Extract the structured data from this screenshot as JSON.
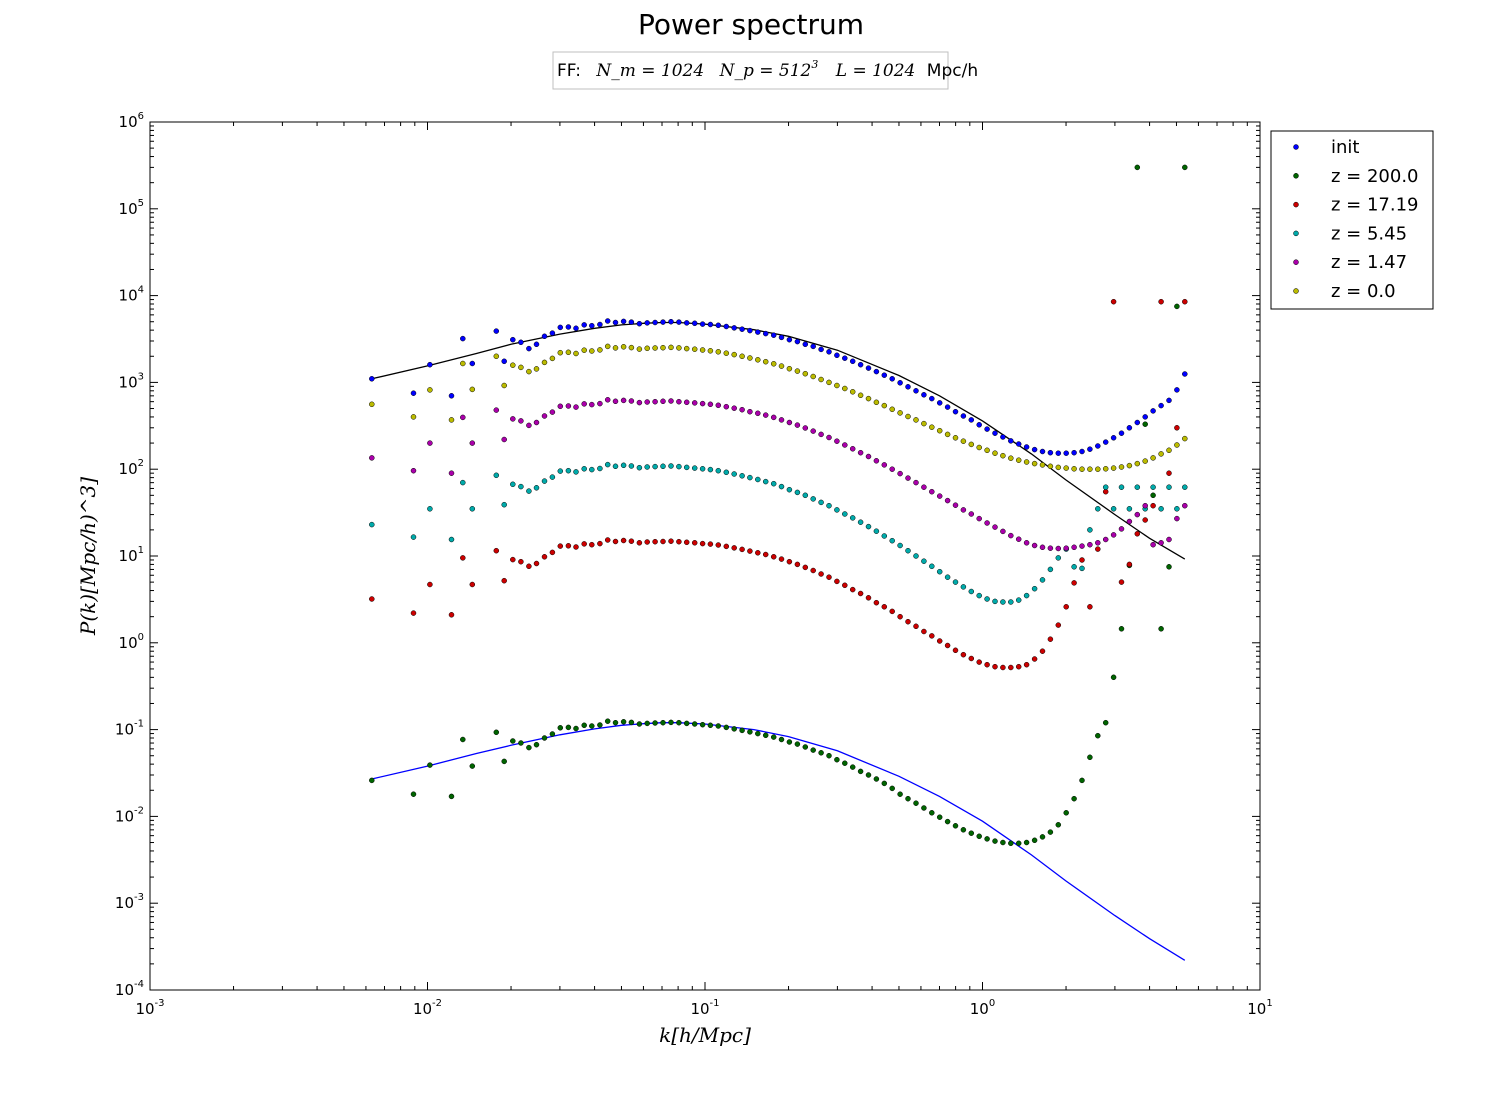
{
  "chart_data": {
    "type": "scatter",
    "title": "Power spectrum",
    "annotation": {
      "prefix": "FF:",
      "nm": "N_m = 1024",
      "np_base": "N_p = 512",
      "np_exp": "3",
      "L": "L = 1024",
      "L_unit": "Mpc/h"
    },
    "xlabel": "k[h/Mpc]",
    "ylabel": "P(k)[Mpc/h)^3]",
    "x_scale": "log",
    "y_scale": "log",
    "xlim": [
      0.001,
      10
    ],
    "ylim": [
      0.0001,
      1000000
    ],
    "x_ticks": [
      {
        "base": "10",
        "exp": "-3"
      },
      {
        "base": "10",
        "exp": "-2"
      },
      {
        "base": "10",
        "exp": "-1"
      },
      {
        "base": "10",
        "exp": "0"
      },
      {
        "base": "10",
        "exp": "1"
      }
    ],
    "y_ticks": [
      {
        "base": "10",
        "exp": "-4"
      },
      {
        "base": "10",
        "exp": "-3"
      },
      {
        "base": "10",
        "exp": "-2"
      },
      {
        "base": "10",
        "exp": "-1"
      },
      {
        "base": "10",
        "exp": "0"
      },
      {
        "base": "10",
        "exp": "1"
      },
      {
        "base": "10",
        "exp": "2"
      },
      {
        "base": "10",
        "exp": "3"
      },
      {
        "base": "10",
        "exp": "4"
      },
      {
        "base": "10",
        "exp": "5"
      },
      {
        "base": "10",
        "exp": "6"
      }
    ],
    "grid": false,
    "legend_position": "outside-top-right",
    "k_values": [
      0.0063,
      0.0089,
      0.0102,
      0.0122,
      0.0134,
      0.0145,
      0.0177,
      0.0189,
      0.0203,
      0.0217,
      0.0232,
      0.0247,
      0.0264,
      0.0282,
      0.0301,
      0.0322,
      0.0343,
      0.0367,
      0.0391,
      0.0418,
      0.0446,
      0.0476,
      0.0509,
      0.0543,
      0.058,
      0.0619,
      0.0661,
      0.0706,
      0.0754,
      0.0805,
      0.0859,
      0.0918,
      0.098,
      0.1046,
      0.1117,
      0.1193,
      0.1274,
      0.136,
      0.1452,
      0.155,
      0.1655,
      0.1768,
      0.1887,
      0.2015,
      0.2152,
      0.2298,
      0.2454,
      0.262,
      0.2798,
      0.2987,
      0.319,
      0.3406,
      0.3637,
      0.3883,
      0.4147,
      0.4428,
      0.4728,
      0.5049,
      0.5391,
      0.5757,
      0.6147,
      0.6564,
      0.7009,
      0.7484,
      0.7992,
      0.8534,
      0.9112,
      0.973,
      1.039,
      1.1094,
      1.1847,
      1.265,
      1.3508,
      1.4424,
      1.5402,
      1.6446,
      1.7561,
      1.8752,
      2.0023,
      2.1381,
      2.2831,
      2.4379,
      2.6032,
      2.7797,
      2.9682,
      3.1694,
      3.3843,
      3.6138,
      3.8588,
      4.1205,
      4.3999,
      4.6982,
      5.0168,
      5.357
    ],
    "series": [
      {
        "name": "init",
        "color": "#0000ff",
        "values": [
          1100,
          750,
          1600,
          700,
          3200,
          1650,
          3900,
          1750,
          3100,
          2900,
          2450,
          2750,
          3400,
          3700,
          4300,
          4350,
          4200,
          4600,
          4500,
          4650,
          5100,
          4900,
          5050,
          4950,
          4750,
          4850,
          4900,
          4950,
          5000,
          4950,
          4850,
          4800,
          4700,
          4650,
          4550,
          4400,
          4250,
          4100,
          3950,
          3800,
          3650,
          3500,
          3300,
          3100,
          2950,
          2750,
          2600,
          2400,
          2250,
          2050,
          1900,
          1750,
          1600,
          1460,
          1330,
          1210,
          1100,
          990,
          890,
          800,
          720,
          650,
          580,
          520,
          460,
          410,
          370,
          325,
          290,
          260,
          235,
          212,
          195,
          180,
          168,
          160,
          155,
          153,
          153,
          155,
          160,
          170,
          185,
          205,
          230,
          260,
          300,
          345,
          400,
          470,
          540,
          620,
          820,
          1250
        ]
      },
      {
        "name": "z = 200.0",
        "color": "#006400",
        "values": [
          0.026,
          0.018,
          0.039,
          0.017,
          0.077,
          0.038,
          0.093,
          0.043,
          0.074,
          0.07,
          0.062,
          0.067,
          0.08,
          0.089,
          0.105,
          0.106,
          0.103,
          0.112,
          0.11,
          0.113,
          0.125,
          0.12,
          0.123,
          0.121,
          0.116,
          0.118,
          0.119,
          0.12,
          0.121,
          0.12,
          0.118,
          0.116,
          0.114,
          0.112,
          0.11,
          0.106,
          0.102,
          0.098,
          0.094,
          0.09,
          0.086,
          0.082,
          0.077,
          0.072,
          0.068,
          0.063,
          0.058,
          0.054,
          0.05,
          0.045,
          0.041,
          0.037,
          0.033,
          0.03,
          0.027,
          0.024,
          0.021,
          0.018,
          0.016,
          0.0142,
          0.0125,
          0.011,
          0.0098,
          0.0087,
          0.0078,
          0.007,
          0.0064,
          0.0059,
          0.0055,
          0.0052,
          0.005,
          0.0049,
          0.0049,
          0.005,
          0.0053,
          0.0058,
          0.0066,
          0.008,
          0.011,
          0.016,
          0.026,
          0.048,
          0.085,
          0.12,
          0.4,
          1.45,
          7.8,
          300000,
          330,
          50,
          1.45,
          7.5,
          7500,
          300000
        ]
      },
      {
        "name": "z = 17.19",
        "color": "#cc0000",
        "values": [
          3.2,
          2.2,
          4.7,
          2.1,
          9.5,
          4.7,
          11.5,
          5.2,
          9.1,
          8.6,
          7.6,
          8.2,
          9.8,
          11,
          13,
          13.1,
          12.7,
          13.8,
          13.5,
          13.9,
          15.3,
          14.7,
          15.1,
          14.8,
          14.2,
          14.5,
          14.6,
          14.7,
          14.8,
          14.6,
          14.4,
          14.2,
          13.9,
          13.7,
          13.4,
          12.9,
          12.4,
          11.9,
          11.4,
          10.9,
          10.4,
          9.8,
          9.2,
          8.6,
          8.0,
          7.4,
          6.8,
          6.2,
          5.7,
          5.1,
          4.6,
          4.1,
          3.7,
          3.3,
          2.9,
          2.6,
          2.3,
          2.0,
          1.75,
          1.55,
          1.35,
          1.2,
          1.05,
          0.93,
          0.82,
          0.73,
          0.66,
          0.6,
          0.56,
          0.53,
          0.52,
          0.52,
          0.53,
          0.56,
          0.65,
          0.8,
          1.1,
          1.6,
          2.6,
          4.9,
          9.0,
          2.6,
          12,
          55,
          8500,
          5,
          8,
          18,
          26,
          38,
          8500,
          90,
          300,
          8500
        ]
      },
      {
        "name": "z = 5.45",
        "color": "#00aaaa",
        "values": [
          23,
          16.5,
          35,
          15.5,
          70,
          35,
          85,
          39,
          67,
          63,
          56,
          61,
          73,
          81,
          95,
          96,
          93,
          101,
          99,
          102,
          113,
          108,
          111,
          109,
          104,
          106,
          107,
          108,
          109,
          107,
          105,
          103,
          101,
          99,
          96,
          92,
          88,
          84,
          80,
          76,
          72,
          68,
          63,
          58,
          54,
          50,
          45.5,
          41.5,
          38,
          34,
          30.5,
          27.5,
          24.5,
          21.8,
          19.3,
          17,
          15,
          13.2,
          11.5,
          10,
          8.7,
          7.6,
          6.6,
          5.7,
          5.0,
          4.4,
          3.9,
          3.5,
          3.2,
          3.0,
          2.95,
          2.95,
          3.1,
          3.5,
          4.2,
          5.3,
          7.0,
          9.5,
          12,
          7.5,
          7.2,
          20,
          35,
          62,
          35,
          62,
          35,
          62,
          35,
          62,
          35,
          62,
          35,
          62
        ]
      },
      {
        "name": "z = 1.47",
        "color": "#aa00aa",
        "values": [
          135,
          96,
          200,
          90,
          395,
          200,
          480,
          220,
          380,
          360,
          320,
          345,
          410,
          455,
          530,
          535,
          520,
          565,
          555,
          570,
          630,
          605,
          620,
          610,
          585,
          595,
          600,
          605,
          610,
          600,
          590,
          580,
          570,
          560,
          545,
          525,
          505,
          485,
          460,
          440,
          420,
          395,
          370,
          345,
          322,
          298,
          275,
          252,
          232,
          210,
          190,
          172,
          155,
          140,
          125,
          112,
          100,
          89,
          79,
          70,
          62,
          55,
          49,
          43.5,
          38.5,
          34,
          30.5,
          27,
          24,
          21.5,
          19.2,
          17.2,
          15.6,
          14.2,
          13.2,
          12.6,
          12.3,
          12.2,
          12.3,
          12.6,
          13.0,
          13.5,
          14.2,
          15.5,
          17.5,
          20.5,
          25,
          30,
          38,
          13.5,
          14.2,
          15.5,
          27,
          38
        ]
      },
      {
        "name": "z = 0.0",
        "color": "#bbbb00",
        "values": [
          560,
          400,
          820,
          370,
          1650,
          830,
          2000,
          920,
          1580,
          1490,
          1330,
          1430,
          1700,
          1890,
          2200,
          2220,
          2150,
          2350,
          2300,
          2370,
          2600,
          2500,
          2570,
          2520,
          2420,
          2470,
          2490,
          2510,
          2530,
          2500,
          2450,
          2410,
          2360,
          2310,
          2250,
          2170,
          2090,
          2000,
          1910,
          1820,
          1730,
          1640,
          1540,
          1440,
          1350,
          1260,
          1170,
          1080,
          1000,
          920,
          850,
          780,
          710,
          650,
          590,
          540,
          490,
          445,
          405,
          370,
          335,
          305,
          278,
          252,
          230,
          210,
          193,
          178,
          165,
          153,
          143,
          134,
          127,
          121,
          116,
          112,
          108,
          105,
          103,
          101,
          100,
          100,
          100,
          101,
          103,
          106,
          110,
          116,
          124,
          135,
          150,
          165,
          190,
          225
        ]
      }
    ],
    "theory_curves": [
      {
        "color": "#000000",
        "x": [
          0.0063,
          0.01,
          0.015,
          0.02,
          0.03,
          0.04,
          0.05,
          0.06,
          0.07,
          0.08,
          0.1,
          0.15,
          0.2,
          0.3,
          0.5,
          0.7,
          1.0,
          1.5,
          2.0,
          3.0,
          4.0,
          5.357
        ],
        "y": [
          1100,
          1550,
          2150,
          2750,
          3600,
          4200,
          4600,
          4800,
          4900,
          4900,
          4700,
          4050,
          3400,
          2350,
          1200,
          700,
          360,
          150,
          75,
          30,
          16,
          9.2
        ]
      },
      {
        "color": "#0000ff",
        "x": [
          0.0063,
          0.01,
          0.015,
          0.02,
          0.03,
          0.04,
          0.05,
          0.06,
          0.07,
          0.08,
          0.1,
          0.15,
          0.2,
          0.3,
          0.5,
          0.7,
          1.0,
          1.5,
          2.0,
          3.0,
          4.0,
          5.357
        ],
        "y": [
          0.027,
          0.038,
          0.053,
          0.066,
          0.087,
          0.102,
          0.112,
          0.117,
          0.12,
          0.12,
          0.116,
          0.1,
          0.083,
          0.057,
          0.029,
          0.017,
          0.0088,
          0.0036,
          0.0018,
          0.00072,
          0.00039,
          0.00022
        ]
      }
    ]
  }
}
